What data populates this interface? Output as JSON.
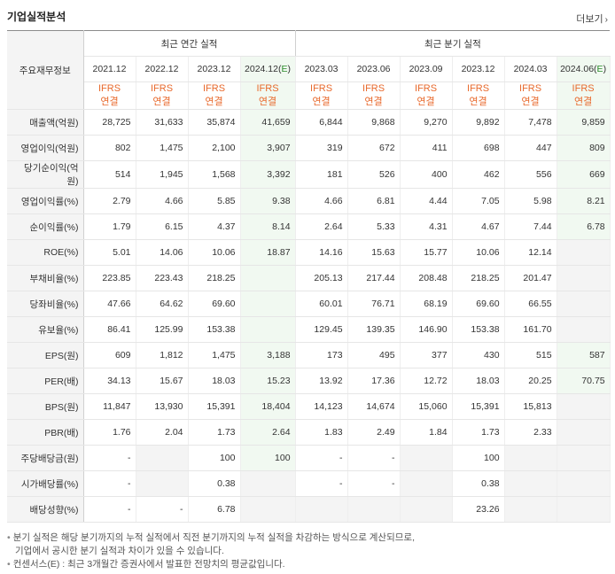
{
  "header": {
    "title": "기업실적분석",
    "more_label": "더보기",
    "more_icon": "chevron-right-icon"
  },
  "table": {
    "label_header": "주요재무정보",
    "annual_group": "최근 연간 실적",
    "quarter_group": "최근 분기 실적",
    "annual_periods": [
      "2021.12",
      "2022.12",
      "2023.12",
      "2024.12(E)"
    ],
    "quarter_periods": [
      "2023.03",
      "2023.06",
      "2023.09",
      "2023.12",
      "2024.03",
      "2024.06(E)"
    ],
    "ifrs_line1": "IFRS",
    "ifrs_line2": "연결",
    "rows": [
      {
        "label": "매출액(억원)",
        "values": [
          "28,725",
          "31,633",
          "35,874",
          "41,659",
          "6,844",
          "9,868",
          "9,270",
          "9,892",
          "7,478",
          "9,859"
        ]
      },
      {
        "label": "영업이익(억원)",
        "values": [
          "802",
          "1,475",
          "2,100",
          "3,907",
          "319",
          "672",
          "411",
          "698",
          "447",
          "809"
        ]
      },
      {
        "label": "당기순이익(억원)",
        "values": [
          "514",
          "1,945",
          "1,568",
          "3,392",
          "181",
          "526",
          "400",
          "462",
          "556",
          "669"
        ]
      },
      {
        "label": "영업이익률(%)",
        "values": [
          "2.79",
          "4.66",
          "5.85",
          "9.38",
          "4.66",
          "6.81",
          "4.44",
          "7.05",
          "5.98",
          "8.21"
        ]
      },
      {
        "label": "순이익률(%)",
        "values": [
          "1.79",
          "6.15",
          "4.37",
          "8.14",
          "2.64",
          "5.33",
          "4.31",
          "4.67",
          "7.44",
          "6.78"
        ]
      },
      {
        "label": "ROE(%)",
        "values": [
          "5.01",
          "14.06",
          "10.06",
          "18.87",
          "14.16",
          "15.63",
          "15.77",
          "10.06",
          "12.14",
          ""
        ]
      },
      {
        "label": "부채비율(%)",
        "values": [
          "223.85",
          "223.43",
          "218.25",
          "",
          "205.13",
          "217.44",
          "208.48",
          "218.25",
          "201.47",
          ""
        ]
      },
      {
        "label": "당좌비율(%)",
        "values": [
          "47.66",
          "64.62",
          "69.60",
          "",
          "60.01",
          "76.71",
          "68.19",
          "69.60",
          "66.55",
          ""
        ]
      },
      {
        "label": "유보율(%)",
        "values": [
          "86.41",
          "125.99",
          "153.38",
          "",
          "129.45",
          "139.35",
          "146.90",
          "153.38",
          "161.70",
          ""
        ]
      },
      {
        "label": "EPS(원)",
        "values": [
          "609",
          "1,812",
          "1,475",
          "3,188",
          "173",
          "495",
          "377",
          "430",
          "515",
          "587"
        ]
      },
      {
        "label": "PER(배)",
        "values": [
          "34.13",
          "15.67",
          "18.03",
          "15.23",
          "13.92",
          "17.36",
          "12.72",
          "18.03",
          "20.25",
          "70.75"
        ]
      },
      {
        "label": "BPS(원)",
        "values": [
          "11,847",
          "13,930",
          "15,391",
          "18,404",
          "14,123",
          "14,674",
          "15,060",
          "15,391",
          "15,813",
          ""
        ]
      },
      {
        "label": "PBR(배)",
        "values": [
          "1.76",
          "2.04",
          "1.73",
          "2.64",
          "1.83",
          "2.49",
          "1.84",
          "1.73",
          "2.33",
          ""
        ]
      },
      {
        "label": "주당배당금(원)",
        "values": [
          "-",
          "",
          "100",
          "100",
          "-",
          "-",
          "",
          "100",
          "",
          ""
        ]
      },
      {
        "label": "시가배당률(%)",
        "values": [
          "-",
          "",
          "0.38",
          "",
          "-",
          "-",
          "",
          "0.38",
          "",
          ""
        ]
      },
      {
        "label": "배당성향(%)",
        "values": [
          "-",
          "-",
          "6.78",
          "",
          "",
          "",
          "",
          "23.26",
          "",
          ""
        ]
      }
    ],
    "grey_cells": [
      [
        13,
        1
      ],
      [
        14,
        1
      ],
      [
        15,
        1
      ],
      [
        13,
        4
      ],
      [
        14,
        4
      ],
      [
        15,
        4
      ],
      [
        13,
        6
      ],
      [
        14,
        6
      ],
      [
        15,
        6
      ],
      [
        13,
        8
      ],
      [
        14,
        8
      ],
      [
        15,
        8
      ],
      [
        13,
        9
      ],
      [
        14,
        9
      ],
      [
        15,
        9
      ],
      [
        5,
        9
      ],
      [
        6,
        9
      ],
      [
        7,
        9
      ],
      [
        8,
        9
      ],
      [
        11,
        9
      ],
      [
        12,
        9
      ],
      [
        15,
        3
      ],
      [
        15,
        4
      ],
      [
        15,
        5
      ],
      [
        14,
        3
      ],
      [
        14,
        8
      ]
    ]
  },
  "notes": [
    "분기 실적은 해당 분기까지의 누적 실적에서 직전 분기까지의 누적 실적을 차감하는 방식으로 계산되므로,",
    "기업에서 공시한 분기 실적과 차이가 있을 수 있습니다.",
    "컨센서스(E) : 최근 3개월간 증권사에서 발표한 전망치의 평균값입니다."
  ]
}
